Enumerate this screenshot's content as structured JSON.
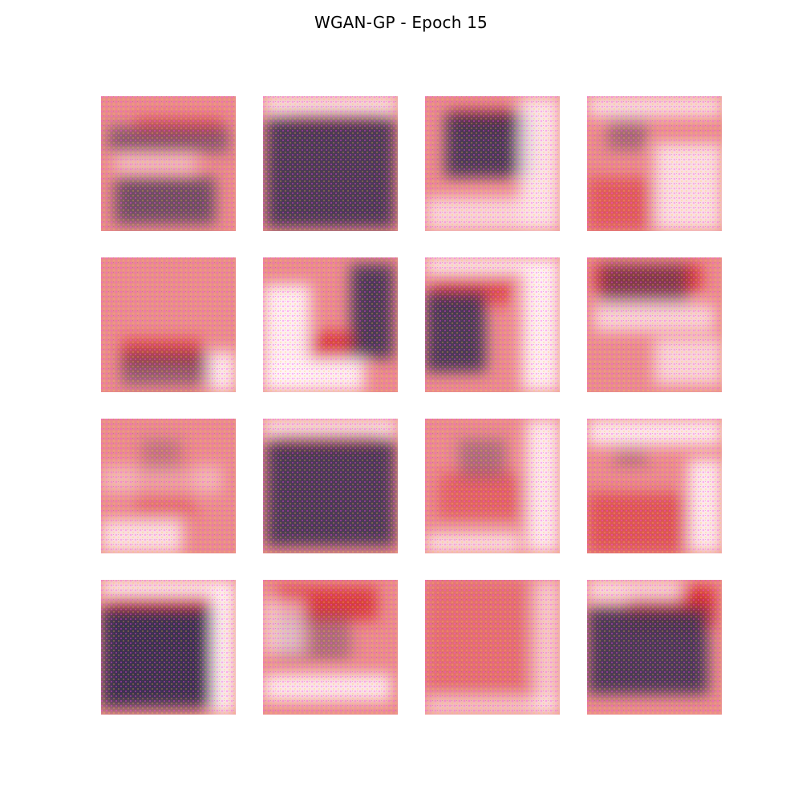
{
  "figure": {
    "title": "WGAN-GP - Epoch 15"
  },
  "samples": [
    {
      "id": 1,
      "dark": [
        [
          0.05,
          0.22,
          0.95,
          0.42,
          0.55
        ],
        [
          0.1,
          0.6,
          0.85,
          0.95,
          0.7
        ]
      ],
      "red": [
        [
          0.25,
          0.15,
          0.9,
          0.28,
          0.5
        ]
      ],
      "light": [
        [
          0.1,
          0.45,
          0.7,
          0.55,
          0.6
        ]
      ]
    },
    {
      "id": 2,
      "dark": [
        [
          0.02,
          0.15,
          0.98,
          0.98,
          0.9
        ]
      ],
      "red": [
        [
          0.2,
          0.1,
          0.85,
          0.22,
          0.6
        ]
      ],
      "light": [
        [
          0.0,
          0.0,
          1.0,
          0.12,
          0.9
        ]
      ]
    },
    {
      "id": 3,
      "dark": [
        [
          0.15,
          0.12,
          0.8,
          0.6,
          0.9
        ]
      ],
      "red": [
        [
          0.2,
          0.1,
          0.75,
          0.25,
          0.9
        ]
      ],
      "light": [
        [
          0.7,
          0.0,
          1.0,
          1.0,
          0.85
        ],
        [
          0.0,
          0.75,
          0.7,
          1.0,
          0.7
        ]
      ]
    },
    {
      "id": 4,
      "dark": [
        [
          0.15,
          0.15,
          0.45,
          0.4,
          0.4
        ]
      ],
      "red": [
        [
          0.0,
          0.6,
          0.5,
          1.0,
          0.5
        ]
      ],
      "light": [
        [
          0.5,
          0.35,
          1.0,
          1.0,
          0.8
        ],
        [
          0.0,
          0.0,
          1.0,
          0.15,
          0.8
        ]
      ]
    },
    {
      "id": 5,
      "dark": [
        [
          0.15,
          0.7,
          0.8,
          0.95,
          0.5
        ]
      ],
      "red": [
        [
          0.15,
          0.6,
          0.75,
          0.8,
          0.65
        ]
      ],
      "light": [
        [
          0.8,
          0.7,
          1.0,
          1.0,
          0.9
        ]
      ]
    },
    {
      "id": 6,
      "dark": [
        [
          0.65,
          0.05,
          0.97,
          0.75,
          0.9
        ]
      ],
      "red": [
        [
          0.25,
          0.55,
          0.7,
          0.75,
          0.8
        ]
      ],
      "light": [
        [
          0.0,
          0.2,
          0.35,
          1.0,
          0.95
        ],
        [
          0.0,
          0.75,
          0.75,
          1.0,
          0.95
        ]
      ]
    },
    {
      "id": 7,
      "dark": [
        [
          0.0,
          0.25,
          0.45,
          0.85,
          0.9
        ]
      ],
      "red": [
        [
          0.05,
          0.15,
          0.65,
          0.35,
          0.6
        ]
      ],
      "light": [
        [
          0.72,
          0.0,
          1.0,
          1.0,
          0.95
        ],
        [
          0.0,
          0.0,
          1.0,
          0.12,
          0.95
        ]
      ]
    },
    {
      "id": 8,
      "dark": [
        [
          0.1,
          0.05,
          0.75,
          0.35,
          0.55
        ]
      ],
      "red": [
        [
          0.05,
          0.05,
          0.85,
          0.25,
          0.85
        ]
      ],
      "light": [
        [
          0.05,
          0.35,
          0.95,
          0.55,
          0.7
        ],
        [
          0.5,
          0.6,
          1.0,
          0.95,
          0.7
        ]
      ]
    },
    {
      "id": 9,
      "dark": [
        [
          0.3,
          0.15,
          0.6,
          0.4,
          0.25
        ]
      ],
      "red": [
        [
          0.25,
          0.3,
          0.7,
          0.75,
          0.35
        ]
      ],
      "light": [
        [
          0.0,
          0.75,
          0.6,
          1.0,
          0.8
        ],
        [
          0.0,
          0.35,
          0.9,
          0.55,
          0.4
        ]
      ]
    },
    {
      "id": 10,
      "dark": [
        [
          0.02,
          0.15,
          0.98,
          0.95,
          0.9
        ]
      ],
      "red": [
        [
          0.1,
          0.05,
          0.85,
          0.2,
          0.8
        ]
      ],
      "light": [
        [
          0.0,
          0.0,
          1.0,
          0.12,
          0.9
        ]
      ]
    },
    {
      "id": 11,
      "dark": [
        [
          0.25,
          0.15,
          0.6,
          0.45,
          0.35
        ]
      ],
      "red": [
        [
          0.1,
          0.4,
          0.8,
          0.75,
          0.4
        ]
      ],
      "light": [
        [
          0.75,
          0.0,
          1.0,
          1.0,
          0.9
        ],
        [
          0.0,
          0.85,
          0.7,
          1.0,
          0.8
        ]
      ]
    },
    {
      "id": 12,
      "dark": [
        [
          0.2,
          0.2,
          0.45,
          0.35,
          0.3
        ]
      ],
      "red": [
        [
          0.0,
          0.55,
          0.8,
          1.0,
          0.55
        ]
      ],
      "light": [
        [
          0.0,
          0.0,
          1.0,
          0.2,
          0.9
        ],
        [
          0.75,
          0.3,
          1.0,
          1.0,
          0.9
        ]
      ]
    },
    {
      "id": 13,
      "dark": [
        [
          0.0,
          0.2,
          0.85,
          0.95,
          1.0
        ]
      ],
      "red": [
        [
          0.05,
          0.12,
          0.8,
          0.3,
          0.8
        ]
      ],
      "light": [
        [
          0.82,
          0.0,
          1.0,
          1.0,
          0.95
        ],
        [
          0.0,
          0.0,
          1.0,
          0.12,
          0.95
        ]
      ]
    },
    {
      "id": 14,
      "dark": [
        [
          0.1,
          0.25,
          0.65,
          0.6,
          0.35
        ]
      ],
      "red": [
        [
          0.1,
          0.05,
          0.85,
          0.3,
          0.8
        ]
      ],
      "light": [
        [
          0.0,
          0.7,
          0.95,
          0.9,
          0.9
        ],
        [
          0.0,
          0.15,
          0.3,
          0.55,
          0.6
        ]
      ]
    },
    {
      "id": 15,
      "dark": [],
      "red": [
        [
          0.0,
          0.0,
          0.85,
          0.85,
          0.3
        ]
      ],
      "light": [
        [
          0.8,
          0.0,
          1.0,
          1.0,
          0.6
        ],
        [
          0.0,
          0.88,
          1.0,
          1.0,
          0.6
        ]
      ]
    },
    {
      "id": 16,
      "dark": [
        [
          0.0,
          0.2,
          0.9,
          0.85,
          0.9
        ]
      ],
      "red": [
        [
          0.3,
          0.05,
          0.95,
          0.35,
          0.9
        ]
      ],
      "light": [
        [
          0.0,
          0.0,
          0.7,
          0.15,
          0.8
        ]
      ]
    }
  ]
}
